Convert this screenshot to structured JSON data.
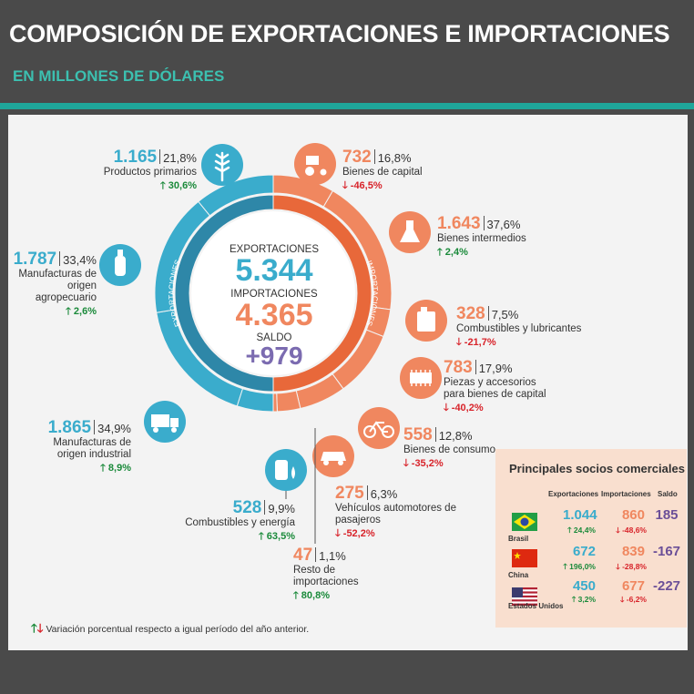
{
  "header": {
    "title": "COMPOSICIÓN DE EXPORTACIONES E IMPORTACIONES",
    "subtitle": "EN MILLONES DE DÓLARES"
  },
  "center": {
    "exp_label": "EXPORTACIONES",
    "exp_value": "5.344",
    "imp_label": "IMPORTACIONES",
    "imp_value": "4.365",
    "saldo_label": "SALDO",
    "saldo_value": "+979",
    "ring_exp_label": "EXPORTACIONES",
    "ring_imp_label": "IMPORTACIONES"
  },
  "colors": {
    "exports": "#3aaccc",
    "imports": "#f0875f",
    "saldo": "#7b6bb0",
    "up": "#1a8a3a",
    "down": "#d8232a"
  },
  "chart_data": {
    "type": "pie",
    "exports": [
      {
        "value": "1.165",
        "share": "21,8%",
        "label": "Productos primarios",
        "variation": "30,6%",
        "direction": "up",
        "icon": "wheat-icon"
      },
      {
        "value": "1.787",
        "share": "33,4%",
        "label": "Manufacturas de origen agropecuario",
        "variation": "2,6%",
        "direction": "up",
        "icon": "bottle-icon"
      },
      {
        "value": "1.865",
        "share": "34,9%",
        "label": "Manufacturas de origen industrial",
        "variation": "8,9%",
        "direction": "up",
        "icon": "truck-icon"
      },
      {
        "value": "528",
        "share": "9,9%",
        "label": "Combustibles y energía",
        "variation": "63,5%",
        "direction": "up",
        "icon": "fuel-barrel-icon"
      }
    ],
    "imports": [
      {
        "value": "732",
        "share": "16,8%",
        "label": "Bienes de capital",
        "variation": "-46,5%",
        "direction": "down",
        "icon": "tractor-icon"
      },
      {
        "value": "1.643",
        "share": "37,6%",
        "label": "Bienes intermedios",
        "variation": "2,4%",
        "direction": "up",
        "icon": "flask-icon"
      },
      {
        "value": "328",
        "share": "7,5%",
        "label": "Combustibles y lubricantes",
        "variation": "-21,7%",
        "direction": "down",
        "icon": "jerrycan-icon"
      },
      {
        "value": "783",
        "share": "17,9%",
        "label": "Piezas y accesorios para bienes de capital",
        "variation": "-40,2%",
        "direction": "down",
        "icon": "chip-icon"
      },
      {
        "value": "558",
        "share": "12,8%",
        "label": "Bienes de consumo",
        "variation": "-35,2%",
        "direction": "down",
        "icon": "bicycle-icon"
      },
      {
        "value": "275",
        "share": "6,3%",
        "label": "Vehículos automotores de pasajeros",
        "variation": "-52,2%",
        "direction": "down",
        "icon": "car-icon"
      },
      {
        "value": "47",
        "share": "1,1%",
        "label": "Resto de importaciones",
        "variation": "80,8%",
        "direction": "up",
        "icon": ""
      }
    ],
    "exports_total": 5344,
    "imports_total": 4365
  },
  "partners": {
    "title": "Principales socios comerciales",
    "col_exp": "Exportaciones",
    "col_imp": "Importaciones",
    "col_saldo": "Saldo",
    "rows": [
      {
        "name": "Brasil",
        "exp": "1.044",
        "exp_var": "24,4%",
        "imp": "860",
        "imp_var": "-48,6%",
        "saldo": "185",
        "flag": "brazil-flag"
      },
      {
        "name": "China",
        "exp": "672",
        "exp_var": "196,0%",
        "imp": "839",
        "imp_var": "-28,8%",
        "saldo": "-167",
        "flag": "china-flag"
      },
      {
        "name": "Estados Unidos",
        "exp": "450",
        "exp_var": "3,2%",
        "imp": "677",
        "imp_var": "-6,2%",
        "saldo": "-227",
        "flag": "usa-flag"
      }
    ]
  },
  "footnote": "Variación porcentual respecto a igual período del año anterior."
}
